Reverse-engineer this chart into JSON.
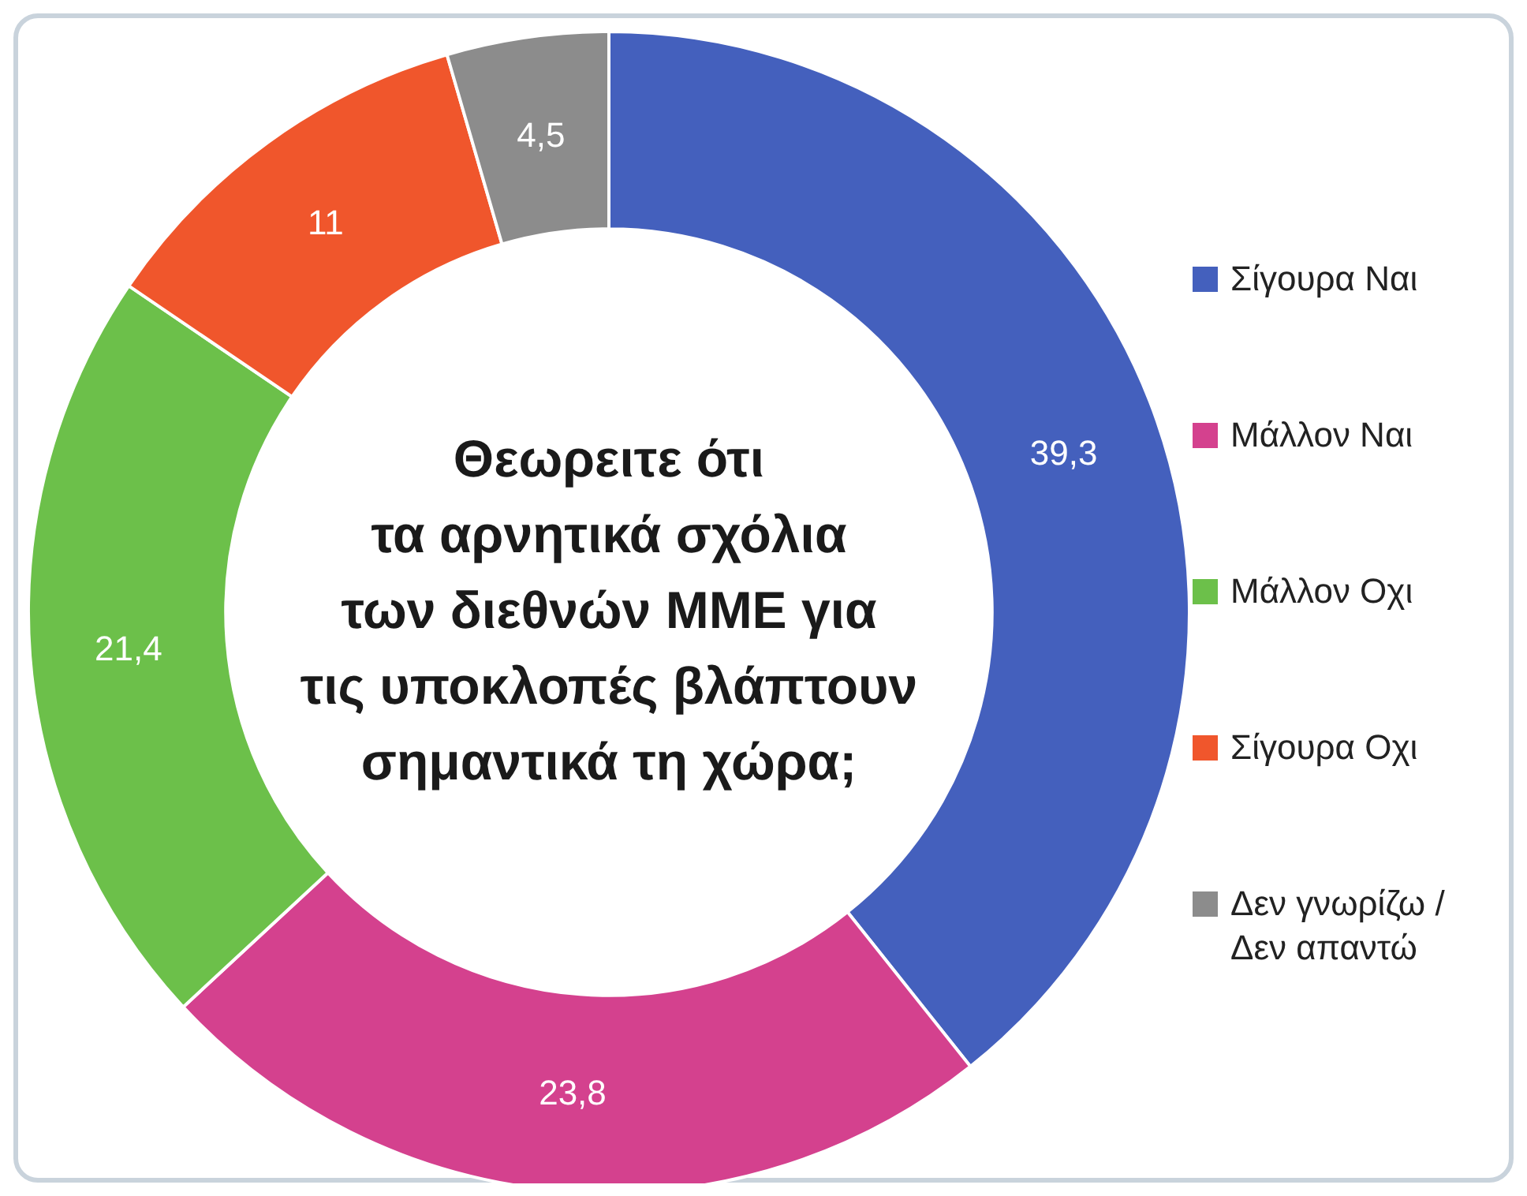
{
  "chart_data": {
    "type": "donut",
    "title": "Θεωρειτε ότι\nτα αρνητικά σχόλια\nτων διεθνών ΜΜΕ για\nτις υποκλοπές βλάπτουν\nσημαντικά τη χώρα;",
    "categories": [
      "Σίγουρα Ναι",
      "Μάλλον Ναι",
      "Μάλλον Οχι",
      "Σίγουρα Οχι",
      "Δεν γνωρίζω / Δεν απαντώ"
    ],
    "values": [
      39.3,
      23.8,
      21.4,
      11,
      4.5
    ],
    "colors": [
      "#4460bd",
      "#d4418e",
      "#6cc04a",
      "#f0562c",
      "#8c8c8c"
    ],
    "value_labels": [
      "39,3",
      "23,8",
      "21,4",
      "11",
      "4,5"
    ],
    "legend": "right"
  }
}
